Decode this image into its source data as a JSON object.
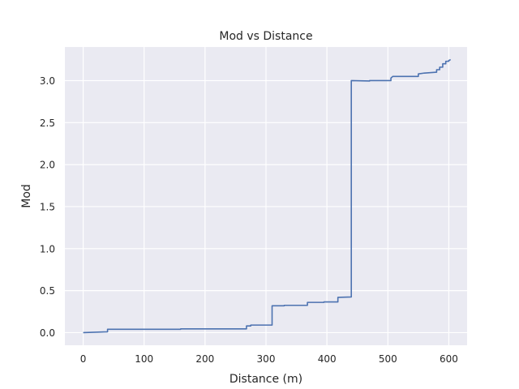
{
  "chart_data": {
    "type": "line",
    "title": "Mod vs Distance",
    "xlabel": "Distance (m)",
    "ylabel": "Mod",
    "xlim": [
      -30,
      630
    ],
    "ylim": [
      -0.15,
      3.4
    ],
    "grid": true,
    "x_ticks": [
      0,
      100,
      200,
      300,
      400,
      500,
      600
    ],
    "x_tick_labels": [
      "0",
      "100",
      "200",
      "300",
      "400",
      "500",
      "600"
    ],
    "y_ticks": [
      0.0,
      0.5,
      1.0,
      1.5,
      2.0,
      2.5,
      3.0
    ],
    "y_tick_labels": [
      "0.0",
      "0.5",
      "1.0",
      "1.5",
      "2.0",
      "2.5",
      "3.0"
    ],
    "series": [
      {
        "name": "Mod",
        "color": "#4c72b0",
        "x": [
          0,
          40,
          40,
          160,
          160,
          268,
          268,
          275,
          275,
          310,
          310,
          330,
          330,
          368,
          368,
          395,
          395,
          418,
          418,
          440,
          440,
          470,
          470,
          505,
          505,
          508,
          508,
          550,
          550,
          560,
          560,
          580,
          580,
          585,
          585,
          590,
          590,
          595,
          595,
          600,
          600,
          603
        ],
        "values": [
          0.0,
          0.01,
          0.04,
          0.04,
          0.045,
          0.045,
          0.08,
          0.08,
          0.09,
          0.09,
          0.32,
          0.32,
          0.325,
          0.325,
          0.36,
          0.36,
          0.365,
          0.365,
          0.42,
          0.425,
          3.0,
          2.995,
          3.0,
          3.0,
          3.03,
          3.05,
          3.05,
          3.05,
          3.08,
          3.09,
          3.09,
          3.1,
          3.13,
          3.13,
          3.16,
          3.16,
          3.2,
          3.2,
          3.23,
          3.23,
          3.24,
          3.25
        ]
      }
    ]
  }
}
